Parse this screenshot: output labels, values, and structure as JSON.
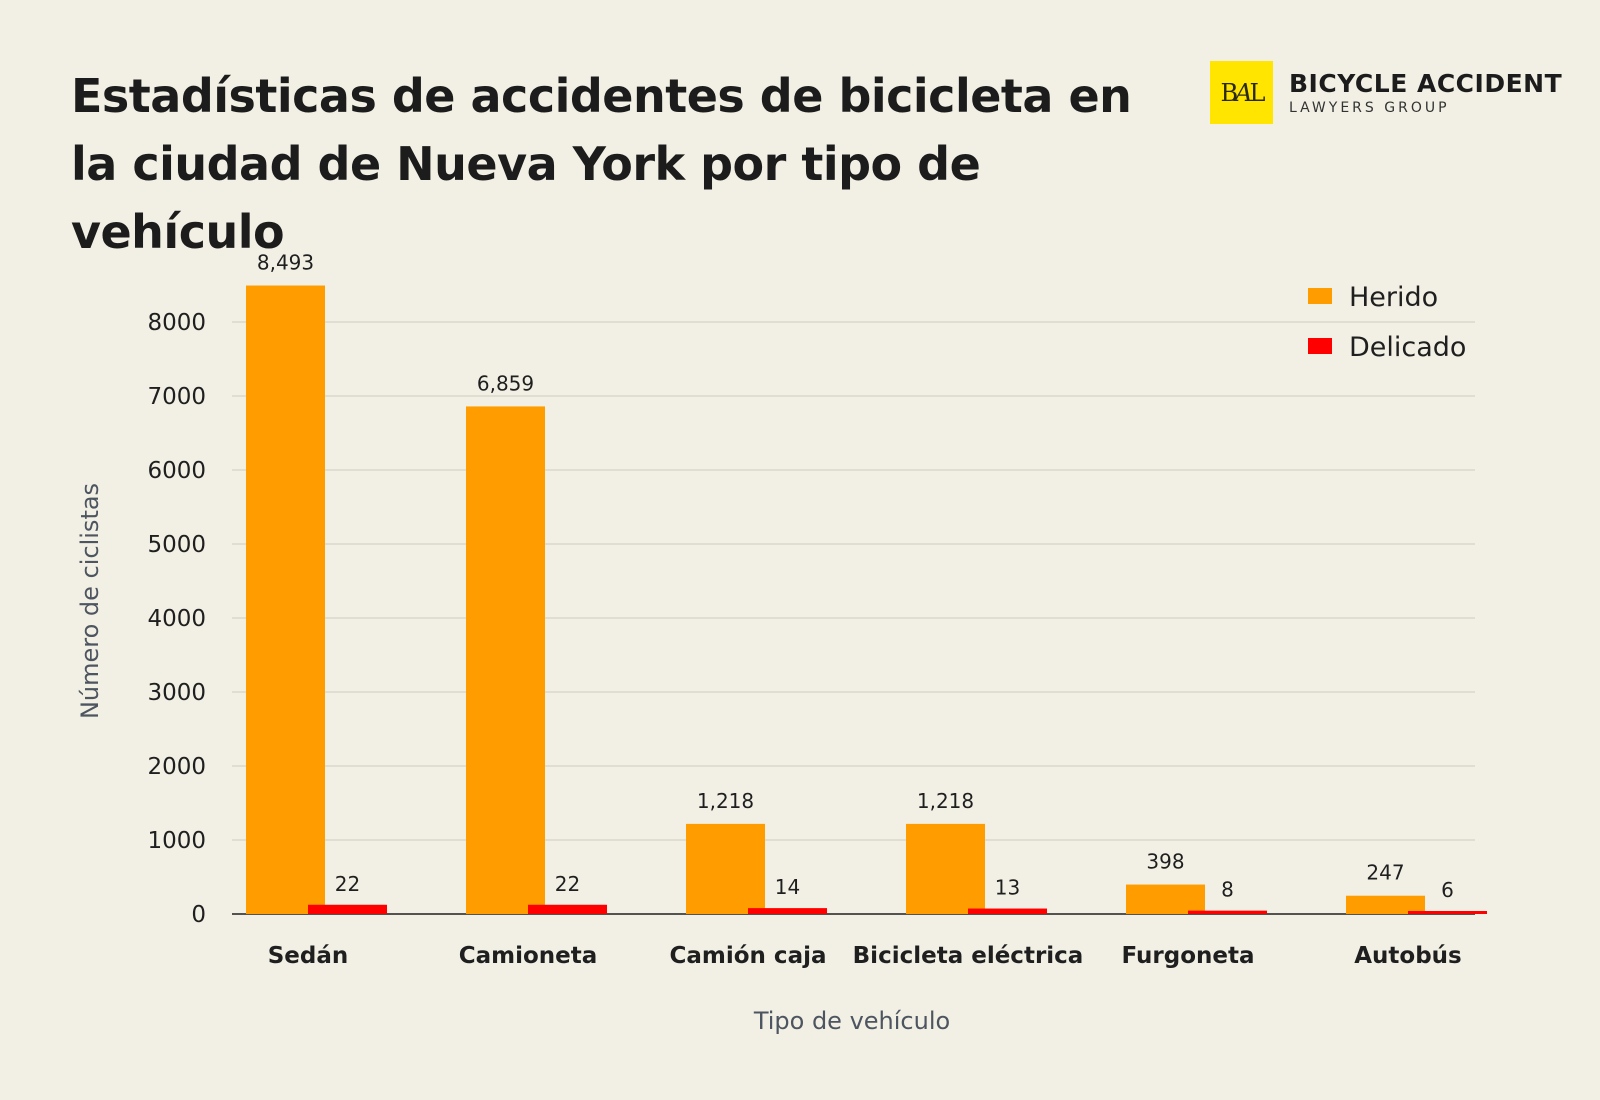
{
  "title": "Estadísticas de accidentes de bicicleta en la ciudad de Nueva York por tipo de vehículo",
  "logo": {
    "mark": "BAL",
    "main": "BICYCLE ACCIDENT",
    "sub": "LAWYERS GROUP",
    "color": "#ffe500"
  },
  "chart_data": {
    "type": "bar",
    "title": "Estadísticas de accidentes de bicicleta en la ciudad de Nueva York por tipo de vehículo",
    "xlabel": "Tipo de vehículo",
    "ylabel": "Número de ciclistas",
    "categories": [
      "Sedán",
      "Camioneta",
      "Camión caja",
      "Bicicleta eléctrica",
      "Furgoneta",
      "Autobús"
    ],
    "series": [
      {
        "name": "Herido",
        "color": "#ff9c00",
        "values": [
          8493,
          6859,
          1218,
          1218,
          398,
          247
        ],
        "labels": [
          "8,493",
          "6,859",
          "1,218",
          "1,218",
          "398",
          "247"
        ]
      },
      {
        "name": "Delicado",
        "color": "#ff0000",
        "values": [
          22,
          22,
          14,
          13,
          8,
          6
        ],
        "labels": [
          "22",
          "22",
          "14",
          "13",
          "8",
          "6"
        ]
      }
    ],
    "ylim": [
      0,
      9000
    ],
    "yticks": [
      0,
      1000,
      2000,
      3000,
      4000,
      5000,
      6000,
      7000,
      8000
    ],
    "grid": true,
    "legend_position": "top-right"
  }
}
